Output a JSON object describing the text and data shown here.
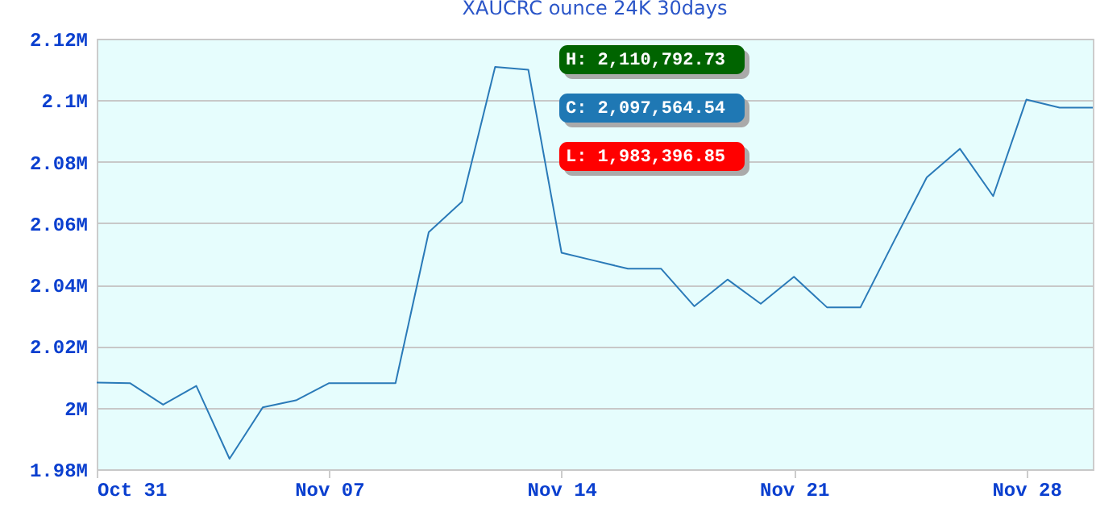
{
  "chart_data": {
    "type": "line",
    "title": "XAUCRC ounce 24K 30days",
    "x": [
      "--10-31",
      "--11-01",
      "--11-02",
      "--11-03",
      "--11-04",
      "--11-05",
      "--11-06",
      "--11-07",
      "--11-08",
      "--11-09",
      "--11-10",
      "--11-11",
      "--11-12",
      "--11-13",
      "--11-14",
      "--11-15",
      "--11-16",
      "--11-17",
      "--11-18",
      "--11-19",
      "--11-20",
      "--11-21",
      "--11-22",
      "--11-23",
      "--11-24",
      "--11-25",
      "--11-26",
      "--11-27",
      "--11-28",
      "--11-29",
      "--11-30"
    ],
    "series": [
      {
        "color": "#2a7ab8",
        "values": [
          2008200,
          2008000,
          2001000,
          2007100,
          1983400,
          2000100,
          2002400,
          2008000,
          2008000,
          2008000,
          2057100,
          2067000,
          2110800,
          2109900,
          2050400,
          2047800,
          2045200,
          2045200,
          2033000,
          2041700,
          2033800,
          2042600,
          2032600,
          2032600,
          2053900,
          2074900,
          2084200,
          2068800,
          2100200,
          2097600,
          2097600
        ]
      }
    ],
    "xlim": [
      "--10-31",
      "--11-30"
    ],
    "xticks": [
      {
        "value": "--10-31",
        "label": "Oct 31"
      },
      {
        "value": "--11-07",
        "label": "Nov 07"
      },
      {
        "value": "--11-14",
        "label": "Nov 14"
      },
      {
        "value": "--11-21",
        "label": "Nov 21"
      },
      {
        "value": "--11-28",
        "label": "Nov 28"
      }
    ],
    "ylim": [
      1980000,
      2120000
    ],
    "yticks": [
      {
        "value": 1980000,
        "label": "1.98M"
      },
      {
        "value": 2000000,
        "label": "2M"
      },
      {
        "value": 2020000,
        "label": "2.02M"
      },
      {
        "value": 2040000,
        "label": "2.04M"
      },
      {
        "value": 2060000,
        "label": "2.06M"
      },
      {
        "value": 2080000,
        "label": "2.08M"
      },
      {
        "value": 2100000,
        "label": "2.1M"
      },
      {
        "value": 2120000,
        "label": "2.12M"
      }
    ],
    "grid": "y",
    "marker": "none",
    "line_style": "solid",
    "annotations": [
      "H: 2,110,792.73",
      "C: 2,097,564.54",
      "L: 1,983,396.85"
    ]
  }
}
